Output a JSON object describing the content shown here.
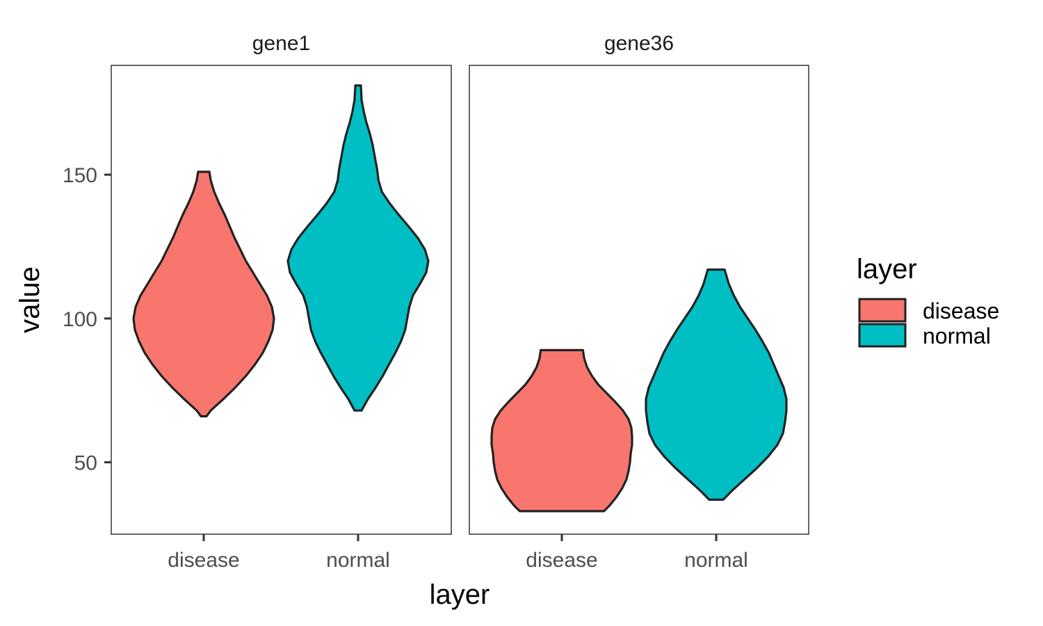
{
  "chart_data": {
    "type": "violin",
    "xlabel": "layer",
    "ylabel": "value",
    "ylim": [
      25,
      188
    ],
    "yticks": [
      50,
      100,
      150
    ],
    "categories": [
      "disease",
      "normal"
    ],
    "grid": false,
    "legend": {
      "title": "layer",
      "position": "right",
      "entries": [
        {
          "label": "disease",
          "color": "#F8766D"
        },
        {
          "label": "normal",
          "color": "#00BFC4"
        }
      ]
    },
    "facets": [
      {
        "title": "gene1",
        "violins": [
          {
            "category": "disease",
            "color": "#F8766D",
            "min": 66,
            "max": 151,
            "profile": [
              [
                66,
                0.04
              ],
              [
                68,
                0.1
              ],
              [
                72,
                0.28
              ],
              [
                76,
                0.45
              ],
              [
                80,
                0.6
              ],
              [
                84,
                0.73
              ],
              [
                88,
                0.84
              ],
              [
                92,
                0.92
              ],
              [
                96,
                0.98
              ],
              [
                100,
                1.0
              ],
              [
                104,
                0.97
              ],
              [
                108,
                0.9
              ],
              [
                112,
                0.8
              ],
              [
                116,
                0.7
              ],
              [
                120,
                0.6
              ],
              [
                124,
                0.52
              ],
              [
                128,
                0.44
              ],
              [
                132,
                0.37
              ],
              [
                136,
                0.3
              ],
              [
                140,
                0.22
              ],
              [
                144,
                0.15
              ],
              [
                148,
                0.1
              ],
              [
                151,
                0.08
              ]
            ]
          },
          {
            "category": "normal",
            "color": "#00BFC4",
            "min": 68,
            "max": 181,
            "profile": [
              [
                68,
                0.05
              ],
              [
                72,
                0.14
              ],
              [
                76,
                0.25
              ],
              [
                80,
                0.35
              ],
              [
                84,
                0.44
              ],
              [
                88,
                0.53
              ],
              [
                92,
                0.61
              ],
              [
                96,
                0.67
              ],
              [
                100,
                0.7
              ],
              [
                104,
                0.73
              ],
              [
                108,
                0.78
              ],
              [
                112,
                0.88
              ],
              [
                116,
                0.97
              ],
              [
                120,
                1.0
              ],
              [
                124,
                0.95
              ],
              [
                128,
                0.85
              ],
              [
                132,
                0.72
              ],
              [
                136,
                0.58
              ],
              [
                140,
                0.45
              ],
              [
                144,
                0.34
              ],
              [
                148,
                0.29
              ],
              [
                152,
                0.27
              ],
              [
                156,
                0.24
              ],
              [
                160,
                0.21
              ],
              [
                164,
                0.17
              ],
              [
                168,
                0.12
              ],
              [
                172,
                0.08
              ],
              [
                176,
                0.05
              ],
              [
                181,
                0.04
              ]
            ]
          }
        ]
      },
      {
        "title": "gene36",
        "violins": [
          {
            "category": "disease",
            "color": "#F8766D",
            "min": 33,
            "max": 89,
            "profile": [
              [
                33,
                0.6
              ],
              [
                35,
                0.68
              ],
              [
                38,
                0.78
              ],
              [
                41,
                0.86
              ],
              [
                44,
                0.92
              ],
              [
                47,
                0.95
              ],
              [
                50,
                0.97
              ],
              [
                53,
                0.98
              ],
              [
                56,
                1.0
              ],
              [
                59,
                1.0
              ],
              [
                62,
                0.99
              ],
              [
                65,
                0.95
              ],
              [
                68,
                0.87
              ],
              [
                71,
                0.76
              ],
              [
                74,
                0.64
              ],
              [
                77,
                0.52
              ],
              [
                80,
                0.43
              ],
              [
                83,
                0.36
              ],
              [
                86,
                0.32
              ],
              [
                89,
                0.3
              ]
            ]
          },
          {
            "category": "normal",
            "color": "#00BFC4",
            "min": 37,
            "max": 117,
            "profile": [
              [
                37,
                0.1
              ],
              [
                40,
                0.22
              ],
              [
                44,
                0.4
              ],
              [
                48,
                0.58
              ],
              [
                52,
                0.74
              ],
              [
                56,
                0.87
              ],
              [
                60,
                0.95
              ],
              [
                64,
                0.98
              ],
              [
                68,
                1.0
              ],
              [
                72,
                1.0
              ],
              [
                76,
                0.96
              ],
              [
                80,
                0.89
              ],
              [
                84,
                0.82
              ],
              [
                88,
                0.75
              ],
              [
                92,
                0.66
              ],
              [
                96,
                0.56
              ],
              [
                100,
                0.45
              ],
              [
                104,
                0.34
              ],
              [
                108,
                0.25
              ],
              [
                112,
                0.18
              ],
              [
                117,
                0.12
              ]
            ]
          }
        ]
      }
    ]
  }
}
